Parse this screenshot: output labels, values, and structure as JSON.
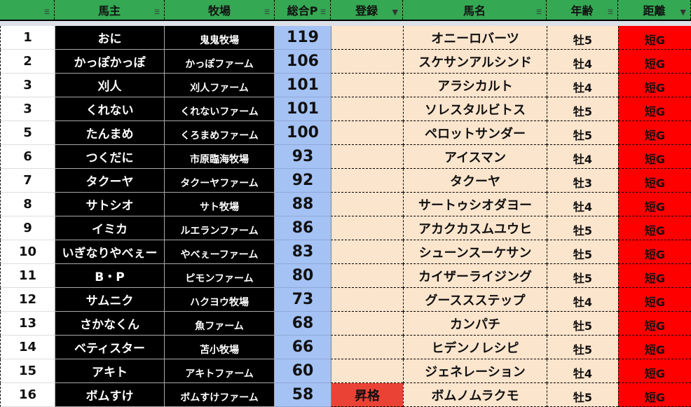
{
  "headers": [
    "",
    "馬主",
    "牧場",
    "総合P",
    "登録",
    "馬名",
    "年齢",
    "距離"
  ],
  "filters": [
    "filter-icon",
    "filter-icon",
    "filter-icon",
    "filter-icon",
    "filter-active-icon",
    "filter-icon",
    "filter-icon",
    "filter-active-icon"
  ],
  "colors": {
    "header": "#34a853",
    "points": "#a4c2f4",
    "peach": "#fce5cd",
    "distance": "#ff0000",
    "promoted": "#ea4335"
  },
  "rows": [
    {
      "rank": "1",
      "owner": "おに",
      "farm": "鬼鬼牧場",
      "points": "119",
      "reg": "",
      "horse": "オニーロバーツ",
      "age": "牡5",
      "dist": "短G"
    },
    {
      "rank": "2",
      "owner": "かっぽかっぽ",
      "farm": "かっぽファーム",
      "points": "106",
      "reg": "",
      "horse": "スケサンアルシンド",
      "age": "牡4",
      "dist": "短G"
    },
    {
      "rank": "3",
      "owner": "刈人",
      "farm": "刈人ファーム",
      "points": "101",
      "reg": "",
      "horse": "アラシカルト",
      "age": "牡4",
      "dist": "短G"
    },
    {
      "rank": "3",
      "owner": "くれない",
      "farm": "くれないファーム",
      "points": "101",
      "reg": "",
      "horse": "ソレスタルビトス",
      "age": "牡5",
      "dist": "短G"
    },
    {
      "rank": "5",
      "owner": "たんまめ",
      "farm": "くろまめファーム",
      "points": "100",
      "reg": "",
      "horse": "ペロットサンダー",
      "age": "牡5",
      "dist": "短G"
    },
    {
      "rank": "6",
      "owner": "つくだに",
      "farm": "市原臨海牧場",
      "points": "93",
      "reg": "",
      "horse": "アイスマン",
      "age": "牡4",
      "dist": "短G"
    },
    {
      "rank": "7",
      "owner": "タクーヤ",
      "farm": "タクーヤファーム",
      "points": "92",
      "reg": "",
      "horse": "タクーヤ",
      "age": "牡3",
      "dist": "短G"
    },
    {
      "rank": "8",
      "owner": "サトシオ",
      "farm": "サト牧場",
      "points": "88",
      "reg": "",
      "horse": "サートゥシオダヨー",
      "age": "牡4",
      "dist": "短G"
    },
    {
      "rank": "9",
      "owner": "イミカ",
      "farm": "ルエランファーム",
      "points": "86",
      "reg": "",
      "horse": "アカクカスムユウヒ",
      "age": "牡5",
      "dist": "短G"
    },
    {
      "rank": "10",
      "owner": "いぎなりやべぇー",
      "farm": "やべぇーファーム",
      "points": "83",
      "reg": "",
      "horse": "シューンスーケサン",
      "age": "牡5",
      "dist": "短G"
    },
    {
      "rank": "11",
      "owner": "B・P",
      "farm": "ピモンファーム",
      "points": "80",
      "reg": "",
      "horse": "カイザーライジング",
      "age": "牡5",
      "dist": "短G"
    },
    {
      "rank": "12",
      "owner": "サムニク",
      "farm": "ハクヨウ牧場",
      "points": "73",
      "reg": "",
      "horse": "グーススステップ",
      "age": "牡4",
      "dist": "短G"
    },
    {
      "rank": "13",
      "owner": "さかなくん",
      "farm": "魚ファーム",
      "points": "68",
      "reg": "",
      "horse": "カンパチ",
      "age": "牡5",
      "dist": "短G"
    },
    {
      "rank": "14",
      "owner": "ベティスター",
      "farm": "苫小牧場",
      "points": "66",
      "reg": "",
      "horse": "ヒデンノレシピ",
      "age": "牡5",
      "dist": "短G"
    },
    {
      "rank": "15",
      "owner": "アキト",
      "farm": "アキトファーム",
      "points": "60",
      "reg": "",
      "horse": "ジェネレーション",
      "age": "牡4",
      "dist": "短G"
    },
    {
      "rank": "16",
      "owner": "ボムすけ",
      "farm": "ボムすけファーム",
      "points": "58",
      "reg": "昇格",
      "horse": "ボムノムラクモ",
      "age": "牡5",
      "dist": "短G"
    }
  ]
}
